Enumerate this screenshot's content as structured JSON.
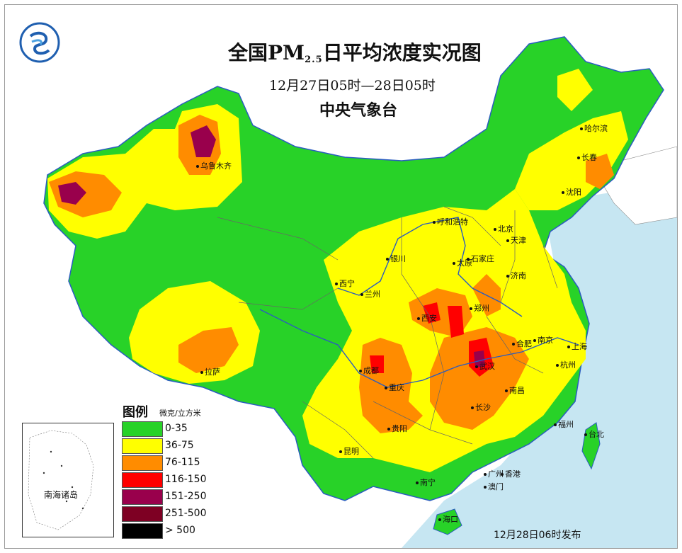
{
  "title_main": "全国PM",
  "title_sub": "2.5",
  "title_tail": "日平均浓度实况图",
  "date_range": "12月27日05时—28日05时",
  "agency": "中央气象台",
  "release": "12月28日06时发布",
  "legend": {
    "title": "图例",
    "unit": "微克/立方米",
    "items": [
      {
        "label": "0-35",
        "color": "#28d228"
      },
      {
        "label": "36-75",
        "color": "#ffff00"
      },
      {
        "label": "76-115",
        "color": "#ff8c00"
      },
      {
        "label": "116-150",
        "color": "#ff0000"
      },
      {
        "label": "151-250",
        "color": "#99004c"
      },
      {
        "label": "251-500",
        "color": "#7e0023"
      },
      {
        "label": "> 500",
        "color": "#000000"
      }
    ]
  },
  "inset_label": "南海诸岛",
  "cities": [
    {
      "name": "乌鲁木齐"
    },
    {
      "name": "哈尔滨"
    },
    {
      "name": "长春"
    },
    {
      "name": "沈阳"
    },
    {
      "name": "呼和浩特"
    },
    {
      "name": "北京"
    },
    {
      "name": "天津"
    },
    {
      "name": "石家庄"
    },
    {
      "name": "太原"
    },
    {
      "name": "银川"
    },
    {
      "name": "济南"
    },
    {
      "name": "西宁"
    },
    {
      "name": "兰州"
    },
    {
      "name": "郑州"
    },
    {
      "name": "西安"
    },
    {
      "name": "合肥"
    },
    {
      "name": "南京"
    },
    {
      "name": "上海"
    },
    {
      "name": "拉萨"
    },
    {
      "name": "成都"
    },
    {
      "name": "武汉"
    },
    {
      "name": "杭州"
    },
    {
      "name": "重庆"
    },
    {
      "name": "南昌"
    },
    {
      "name": "长沙"
    },
    {
      "name": "贵阳"
    },
    {
      "name": "福州"
    },
    {
      "name": "台北"
    },
    {
      "name": "昆明"
    },
    {
      "name": "广州"
    },
    {
      "name": "香港"
    },
    {
      "name": "南宁"
    },
    {
      "name": "澳门"
    },
    {
      "name": "海口"
    }
  ]
}
